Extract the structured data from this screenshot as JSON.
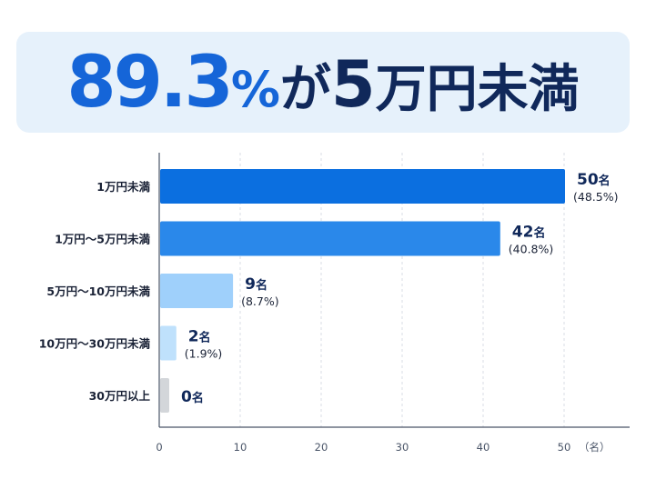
{
  "headline": {
    "percent_number": "89.3",
    "percent_sign": "%",
    "particle": "が",
    "amount_number": "5",
    "amount_text": "万円未満"
  },
  "chart_data": {
    "type": "bar",
    "orientation": "horizontal",
    "categories": [
      "1万円未満",
      "1万円～5万円未満",
      "5万円～10万円未満",
      "10万円～30万円未満",
      "30万円以上"
    ],
    "values": [
      50,
      42,
      9,
      2,
      0
    ],
    "value_labels": [
      "50名",
      "42名",
      "9名",
      "2名",
      "0名"
    ],
    "percent_labels": [
      "(48.5%)",
      "(40.8%)",
      "(8.7%)",
      "(1.9%)",
      ""
    ],
    "bar_colors": [
      "#0b6fe0",
      "#2a88ea",
      "#9fd0fb",
      "#bfe1fc",
      "#d3d6da"
    ],
    "xlim": [
      0,
      58
    ],
    "xticks": [
      0,
      10,
      20,
      30,
      40,
      50
    ],
    "tick_labels": [
      "0",
      "10",
      "20",
      "30",
      "40",
      "50"
    ],
    "x_unit_label": "（名）",
    "grid": true
  }
}
